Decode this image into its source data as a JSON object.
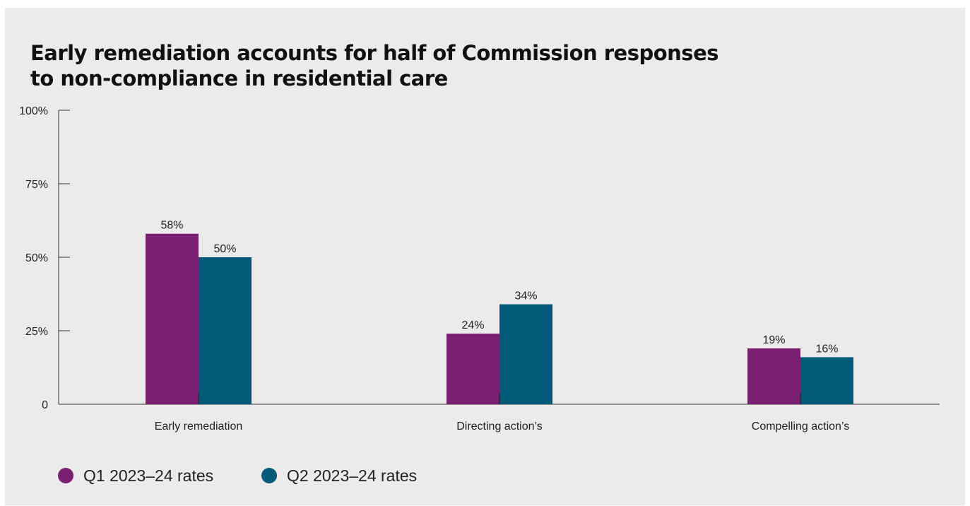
{
  "chart_data": {
    "type": "bar",
    "title": "Early remediation accounts for half of Commission responses to non-compliance in residential care",
    "categories": [
      "Early remediation",
      "Directing action’s",
      "Compelling action’s"
    ],
    "series": [
      {
        "name": "Q1 2023–24 rates",
        "values": [
          58,
          24,
          19
        ],
        "labels": [
          "58%",
          "24%",
          "19%"
        ],
        "color": "#7b1f73"
      },
      {
        "name": "Q2 2023–24 rates",
        "values": [
          50,
          34,
          16
        ],
        "labels": [
          "50%",
          "34%",
          "16%"
        ],
        "color": "#005a78"
      }
    ],
    "ylim": [
      0,
      100
    ],
    "yticks": [
      {
        "value": 0,
        "label": "0"
      },
      {
        "value": 25,
        "label": "25%"
      },
      {
        "value": 50,
        "label": "50%"
      },
      {
        "value": 75,
        "label": "75%"
      },
      {
        "value": 100,
        "label": "100%"
      }
    ],
    "grid": false,
    "legend_position": "bottom-left",
    "axis_color": "#333333",
    "background": "#ebebeb"
  }
}
